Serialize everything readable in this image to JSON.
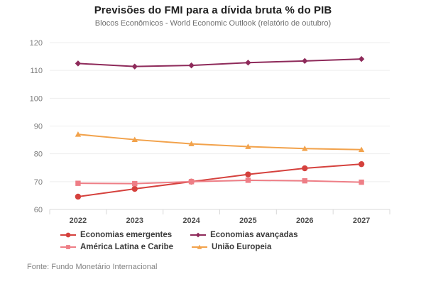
{
  "header": {
    "title": "Previsões do FMI para a dívida bruta % do PIB",
    "subtitle": "Blocos Econômicos - World Economic Outlook (relatório de outubro)"
  },
  "chart_data": {
    "type": "line",
    "title": "Previsões do FMI para a dívida bruta % do PIB",
    "subtitle": "Blocos Econômicos - World Economic Outlook (relatório de outubro)",
    "categories": [
      "2022",
      "2023",
      "2024",
      "2025",
      "2026",
      "2027"
    ],
    "series": [
      {
        "name": "Economias emergentes",
        "color": "#d5413d",
        "marker": "circle",
        "values": [
          64.6,
          67.4,
          70.0,
          72.6,
          74.8,
          76.3
        ]
      },
      {
        "name": "Economias avançadas",
        "color": "#8e2a5a",
        "marker": "diamond",
        "values": [
          112.5,
          111.4,
          111.8,
          112.8,
          113.4,
          114.1
        ]
      },
      {
        "name": "América Latina e Caribe",
        "color": "#ee7e86",
        "marker": "square",
        "values": [
          69.4,
          69.3,
          70.0,
          70.5,
          70.3,
          69.8
        ]
      },
      {
        "name": "União Europeia",
        "color": "#f2a24b",
        "marker": "triangle",
        "values": [
          87.0,
          85.1,
          83.6,
          82.6,
          81.9,
          81.5
        ]
      }
    ],
    "xlabel": "",
    "ylabel": "",
    "ylim": [
      60,
      120
    ],
    "yticks": [
      60,
      70,
      80,
      90,
      100,
      110,
      120
    ],
    "grid": true,
    "legend_position": "bottom",
    "colors": {
      "grid_line": "#ededed",
      "axis_line": "#d8d8d8",
      "y_tick_text": "#7c7c7c",
      "x_tick_text": "#4d4d4d"
    }
  },
  "footer": {
    "source": "Fonte: Fundo Monetário Internacional"
  }
}
